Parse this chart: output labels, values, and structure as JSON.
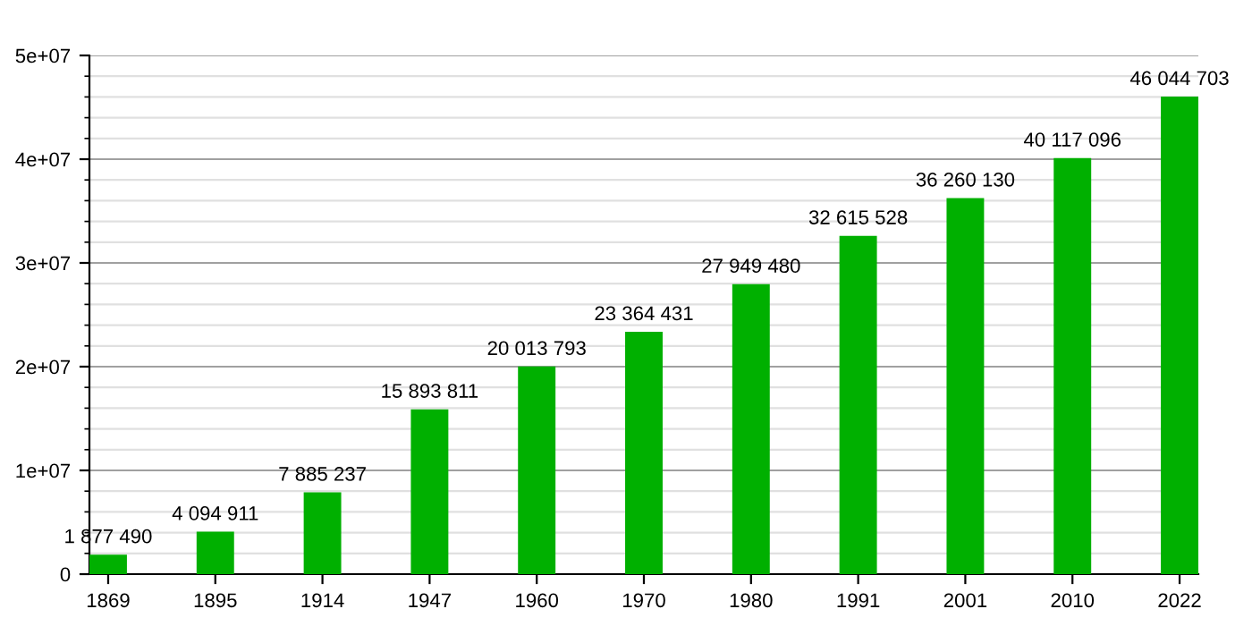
{
  "chart_data": {
    "type": "bar",
    "categories": [
      "1869",
      "1895",
      "1914",
      "1947",
      "1960",
      "1970",
      "1980",
      "1991",
      "2001",
      "2010",
      "2022"
    ],
    "values": [
      1877490,
      4094911,
      7885237,
      15893811,
      20013793,
      23364431,
      27949480,
      32615528,
      36260130,
      40117096,
      46044703
    ],
    "value_labels": [
      "1 877 490",
      "4 094 911",
      "7 885 237",
      "15 893 811",
      "20 013 793",
      "23 364 431",
      "27 949 480",
      "32 615 528",
      "36 260 130",
      "40 117 096",
      "46 044 703"
    ],
    "color": "#00b000",
    "ylim": [
      0,
      50000000
    ],
    "yticks": [
      0,
      {
        "value": 10000000,
        "label": "1e+07"
      },
      {
        "value": 20000000,
        "label": "2e+07"
      },
      {
        "value": 30000000,
        "label": "3e+07"
      },
      {
        "value": 40000000,
        "label": "4e+07"
      },
      {
        "value": 50000000,
        "label": "5e+07"
      }
    ],
    "grid": true
  }
}
